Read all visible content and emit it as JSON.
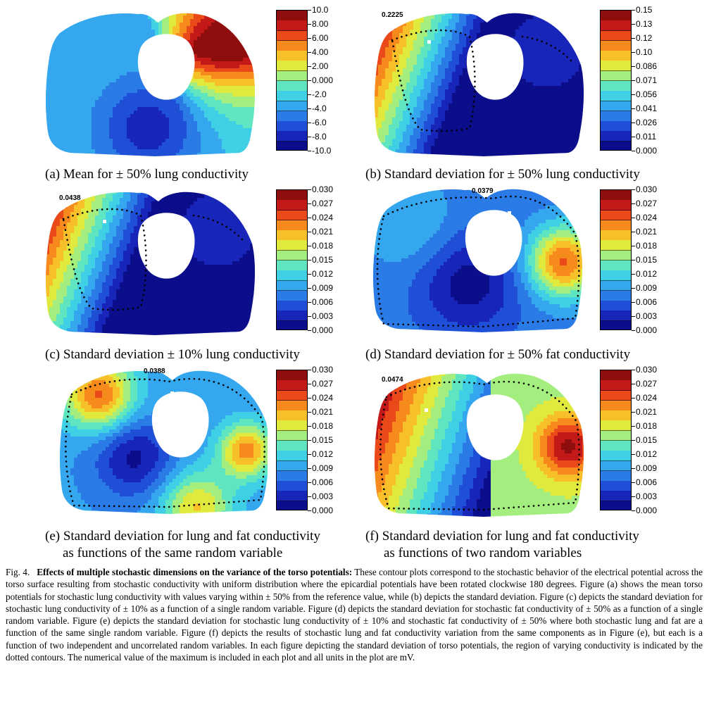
{
  "colors": {
    "ramp": [
      "#0b0d8a",
      "#1726b8",
      "#1f4fd6",
      "#2b7be6",
      "#35a7ef",
      "#3fd0e6",
      "#5fe5c0",
      "#a3ee7e",
      "#e0ea3e",
      "#f7c02a",
      "#f68a1d",
      "#ea4a19",
      "#c41919",
      "#8e0d0d"
    ]
  },
  "panels": [
    {
      "id": "a",
      "caption": [
        "(a) Mean for ± 50% lung conductivity"
      ],
      "max_label": "",
      "colorbar_labels": [
        "10.0",
        "8.00",
        "6.00",
        "4.00",
        "2.00",
        "0.000",
        "-2.0",
        "-4.0",
        "-6.0",
        "-8.0",
        "-10.0"
      ],
      "dotted": false,
      "field": "mean"
    },
    {
      "id": "b",
      "caption": [
        "(b) Standard deviation for ± 50% lung conductivity"
      ],
      "max_label": "0.2225",
      "colorbar_labels": [
        "0.15",
        "0.13",
        "0.12",
        "0.10",
        "0.086",
        "0.071",
        "0.056",
        "0.041",
        "0.026",
        "0.011",
        "0.000"
      ],
      "dotted": true,
      "field": "lung"
    },
    {
      "id": "c",
      "caption": [
        "(c) Standard deviation ± 10% lung conductivity"
      ],
      "max_label": "0.0438",
      "colorbar_labels": [
        "0.030",
        "0.027",
        "0.024",
        "0.021",
        "0.018",
        "0.015",
        "0.012",
        "0.009",
        "0.006",
        "0.003",
        "0.000"
      ],
      "dotted": true,
      "field": "lung"
    },
    {
      "id": "d",
      "caption": [
        "(d) Standard deviation for ± 50% fat conductivity"
      ],
      "max_label": "0.0379",
      "colorbar_labels": [
        "0.030",
        "0.027",
        "0.024",
        "0.021",
        "0.018",
        "0.015",
        "0.012",
        "0.009",
        "0.006",
        "0.003",
        "0.000"
      ],
      "dotted": true,
      "field": "fat"
    },
    {
      "id": "e",
      "caption": [
        "(e) Standard deviation for lung and fat conductivity",
        "as functions of the same random variable"
      ],
      "max_label": "0.0388",
      "colorbar_labels": [
        "0.030",
        "0.027",
        "0.024",
        "0.021",
        "0.018",
        "0.015",
        "0.012",
        "0.009",
        "0.006",
        "0.003",
        "0.000"
      ],
      "dotted": true,
      "field": "lungfat"
    },
    {
      "id": "f",
      "caption": [
        "(f) Standard deviation for lung and fat conductivity",
        "as functions of two random variables"
      ],
      "max_label": "0.0474",
      "colorbar_labels": [
        "0.030",
        "0.027",
        "0.024",
        "0.021",
        "0.018",
        "0.015",
        "0.012",
        "0.009",
        "0.006",
        "0.003",
        "0.000"
      ],
      "dotted": true,
      "field": "two"
    }
  ],
  "figure_caption": {
    "label": "Fig. 4.",
    "bold": "Effects of multiple stochastic dimensions on the variance of the torso potentials:",
    "body": "These contour plots correspond to the stochastic behavior of the electrical potential across the torso surface resulting from stochastic conductivity with uniform distribution where the epicardial potentials have been rotated clockwise 180 degrees. Figure (a) shows the mean torso potentials for stochastic lung conductivity with values varying within ± 50% from the reference value, while (b) depicts the standard deviation. Figure (c) depicts the standard deviation for stochastic lung conductivity of ± 10% as a function of a single random variable. Figure (d) depicts the standard deviation for stochastic fat conductivity of ± 50% as a function of a single random variable. Figure (e) depicts the standard deviation for stochastic lung conductivity of ± 10% and stochastic fat conductivity of ± 50% where both stochastic lung and fat are a function of the same single random variable. Figure (f) depicts the results of stochastic lung and fat conductivity variation from the same components as in Figure (e), but each is a function of two independent and uncorrelated random variables. In each figure depicting the standard deviation of torso potentials, the region of varying conductivity is indicated by the dotted contours. The numerical value of the maximum is included in each plot and all units in the plot are mV."
  }
}
